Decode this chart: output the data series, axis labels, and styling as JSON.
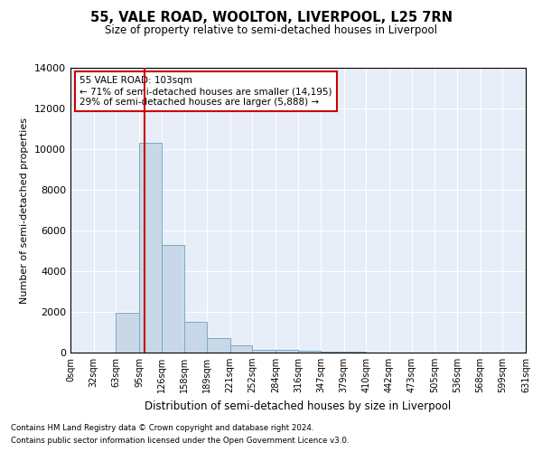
{
  "title": "55, VALE ROAD, WOOLTON, LIVERPOOL, L25 7RN",
  "subtitle": "Size of property relative to semi-detached houses in Liverpool",
  "xlabel": "Distribution of semi-detached houses by size in Liverpool",
  "ylabel": "Number of semi-detached properties",
  "annotation_title": "55 VALE ROAD: 103sqm",
  "annotation_line1": "← 71% of semi-detached houses are smaller (14,195)",
  "annotation_line2": "29% of semi-detached houses are larger (5,888) →",
  "footer1": "Contains HM Land Registry data © Crown copyright and database right 2024.",
  "footer2": "Contains public sector information licensed under the Open Government Licence v3.0.",
  "property_size": 103,
  "bar_edges": [
    0,
    32,
    63,
    95,
    126,
    158,
    189,
    221,
    252,
    284,
    316,
    347,
    379,
    410,
    442,
    473,
    505,
    536,
    568,
    599,
    631
  ],
  "bar_heights": [
    0,
    0,
    1950,
    10300,
    5300,
    1500,
    700,
    350,
    150,
    150,
    100,
    50,
    50,
    0,
    0,
    0,
    0,
    0,
    0,
    0
  ],
  "bar_color": "#c8d8e8",
  "bar_edge_color": "#7aaac8",
  "red_line_color": "#cc0000",
  "box_edge_color": "#cc0000",
  "background_color": "#ffffff",
  "plot_bg_color": "#e8eef8",
  "grid_color": "#ffffff",
  "ylim": [
    0,
    14000
  ],
  "yticks": [
    0,
    2000,
    4000,
    6000,
    8000,
    10000,
    12000,
    14000
  ]
}
